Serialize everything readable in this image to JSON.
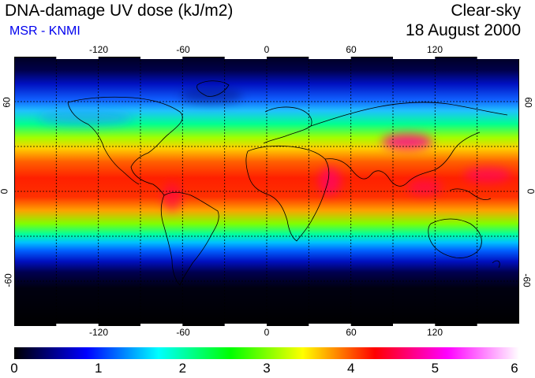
{
  "header": {
    "title": "DNA-damage UV dose (kJ/m2)",
    "subtitle": "MSR - KNMI",
    "condition": "Clear-sky",
    "date": "18 August 2000"
  },
  "map": {
    "lon_ticks": [
      "-120",
      "-60",
      "0",
      "60",
      "120"
    ],
    "lat_ticks": [
      "60",
      "0",
      "-60"
    ],
    "lon_range": [
      -180,
      180
    ],
    "lat_range": [
      -90,
      90
    ],
    "gridlines": true
  },
  "colorbar": {
    "labels": [
      "0",
      "1",
      "2",
      "3",
      "4",
      "5",
      "6"
    ],
    "range": [
      0,
      6
    ],
    "colors": [
      "#000000",
      "#0000ff",
      "#00ffff",
      "#00ff00",
      "#ffff00",
      "#ff0000",
      "#ff00ff",
      "#ffffff"
    ]
  }
}
